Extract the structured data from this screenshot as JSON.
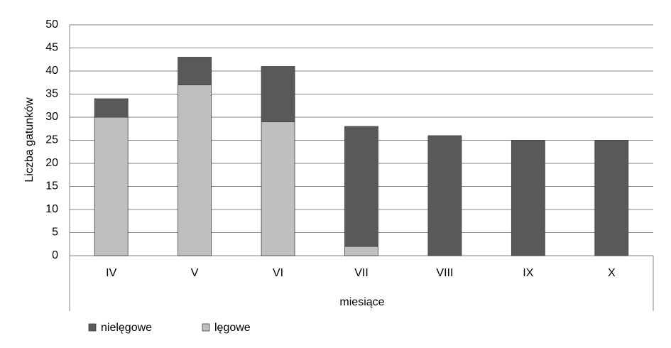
{
  "chart_data": {
    "type": "stacked_bar",
    "y_label": "Liczba gatunków",
    "x_label": "miesiące",
    "categories": [
      "IV",
      "V",
      "VI",
      "VII",
      "VIII",
      "IX",
      "X"
    ],
    "series": [
      {
        "name": "nielęgowe",
        "color": "#595959",
        "values": [
          4,
          6,
          12,
          26,
          26,
          25,
          25
        ]
      },
      {
        "name": "lęgowe",
        "color": "#bfbfbf",
        "values": [
          30,
          37,
          29,
          2,
          0,
          0,
          0
        ]
      }
    ],
    "ylim": [
      0,
      50
    ],
    "yticks": [
      0,
      5,
      10,
      15,
      20,
      25,
      30,
      35,
      40,
      45,
      50
    ],
    "grid": true
  }
}
